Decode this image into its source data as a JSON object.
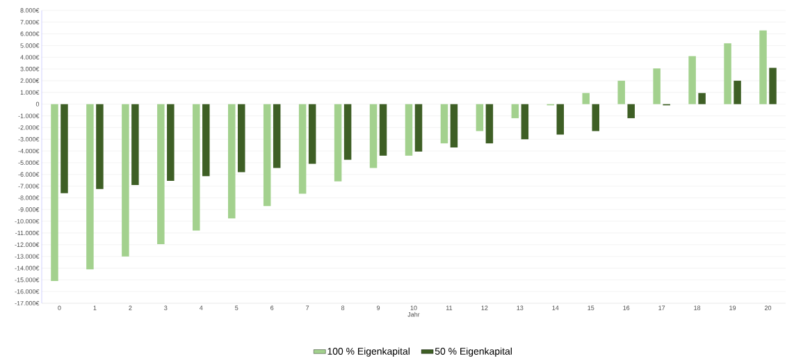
{
  "chart_data": {
    "type": "bar",
    "xlabel": "Jahr",
    "categories": [
      "0",
      "1",
      "2",
      "3",
      "4",
      "5",
      "6",
      "7",
      "8",
      "9",
      "10",
      "11",
      "12",
      "13",
      "14",
      "15",
      "16",
      "17",
      "18",
      "19",
      "20"
    ],
    "series": [
      {
        "name": "100 % Eigenkapital",
        "color": "#a3d18e",
        "values": [
          -15100,
          -14100,
          -13000,
          -11950,
          -10800,
          -9750,
          -8700,
          -7650,
          -6600,
          -5450,
          -4400,
          -3350,
          -2300,
          -1200,
          -100,
          950,
          2000,
          3050,
          4100,
          5200,
          6300
        ]
      },
      {
        "name": "50 % Eigenkapital",
        "color": "#3e5f25",
        "values": [
          -7600,
          -7250,
          -6900,
          -6550,
          -6150,
          -5800,
          -5450,
          -5100,
          -4750,
          -4400,
          -4050,
          -3700,
          -3350,
          -3000,
          -2600,
          -2300,
          -1200,
          -100,
          950,
          2000,
          3100
        ]
      }
    ],
    "ylim": [
      -17000,
      8000
    ],
    "yticks": [
      {
        "value": 8000,
        "label": "8.000€"
      },
      {
        "value": 7000,
        "label": "7.000€"
      },
      {
        "value": 6000,
        "label": "6.000€"
      },
      {
        "value": 5000,
        "label": "5.000€"
      },
      {
        "value": 4000,
        "label": "4.000€"
      },
      {
        "value": 3000,
        "label": "3.000€"
      },
      {
        "value": 2000,
        "label": "2.000€"
      },
      {
        "value": 1000,
        "label": "1.000€"
      },
      0,
      {
        "value": -1000,
        "label": "-1.000€"
      },
      {
        "value": -2000,
        "label": "-2.000€"
      },
      {
        "value": -3000,
        "label": "-3.000€"
      },
      {
        "value": -4000,
        "label": "-4.000€"
      },
      {
        "value": -5000,
        "label": "-5.000€"
      },
      {
        "value": -6000,
        "label": "-6.000€"
      },
      {
        "value": -7000,
        "label": "-7.000€"
      },
      {
        "value": -8000,
        "label": "-8.000€"
      },
      {
        "value": -9000,
        "label": "-9.000€"
      },
      {
        "value": -10000,
        "label": "-10.000€"
      },
      {
        "value": -11000,
        "label": "-11.000€"
      },
      {
        "value": -12000,
        "label": "-12.000€"
      },
      {
        "value": -13000,
        "label": "-13.000€"
      },
      {
        "value": -14000,
        "label": "-14.000€"
      },
      {
        "value": -15000,
        "label": "-15.000€"
      },
      {
        "value": -16000,
        "label": "-16.000€"
      },
      {
        "value": -17000,
        "label": "-17.000€"
      }
    ],
    "grid": "y",
    "legend": "bottom"
  }
}
